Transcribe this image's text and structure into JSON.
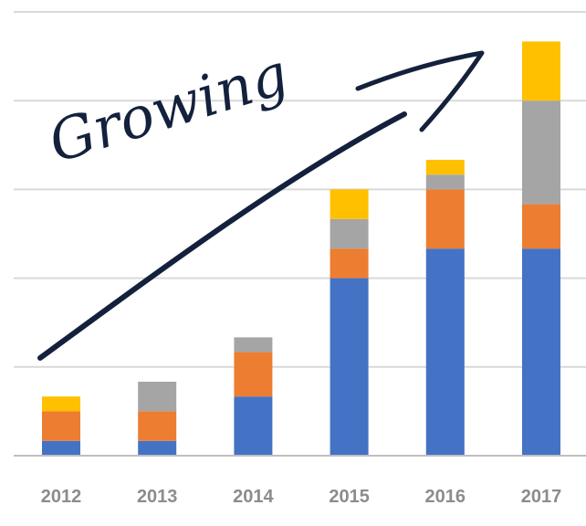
{
  "chart_data": {
    "type": "bar",
    "stacked": true,
    "categories": [
      "2012",
      "2013",
      "2014",
      "2015",
      "2016",
      "2017"
    ],
    "series": [
      {
        "color": "#4472c4",
        "values": [
          1,
          1,
          4,
          12,
          14,
          14
        ]
      },
      {
        "color": "#ed7d31",
        "values": [
          2,
          2,
          3,
          2,
          4,
          3
        ]
      },
      {
        "color": "#a5a5a5",
        "values": [
          0,
          2,
          1,
          2,
          1,
          7
        ]
      },
      {
        "color": "#ffc000",
        "values": [
          1,
          0,
          0,
          2,
          1,
          4
        ]
      }
    ],
    "ylim": [
      0,
      30
    ],
    "grid": true,
    "annotation": {
      "text": "Growing",
      "color": "#14213d"
    },
    "tick_color": "#8c8c8c",
    "grid_color": "#d9d9d9",
    "axis_color": "#bfbfbf"
  }
}
